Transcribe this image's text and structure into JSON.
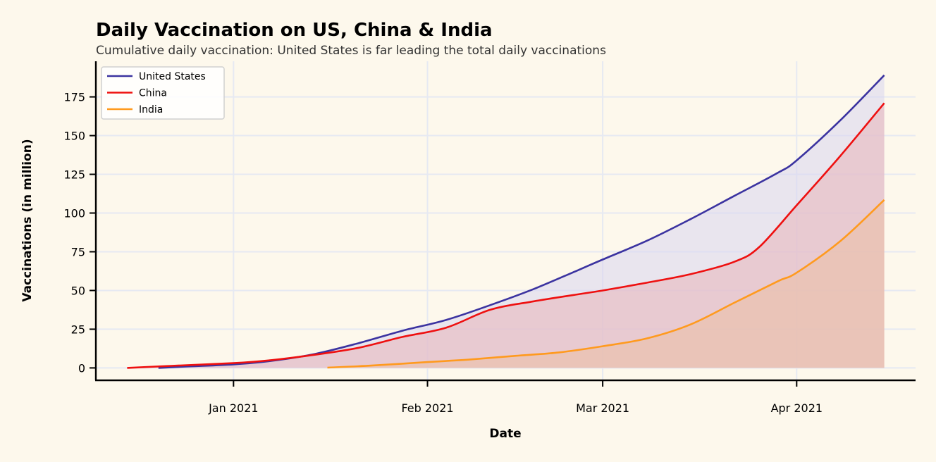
{
  "chart_data": {
    "type": "area",
    "title": "Daily Vaccination on US, China & India",
    "subtitle": "Cumulative daily vaccination: United States is far leading the total daily vaccinations",
    "xlabel": "Date",
    "ylabel": "Vaccinations (in million)",
    "xlim": [
      "2020-12-10",
      "2021-04-20"
    ],
    "ylim": [
      -8,
      198
    ],
    "x_ticks": [
      {
        "date": "2021-01-01",
        "label": "Jan 2021"
      },
      {
        "date": "2021-02-01",
        "label": "Feb 2021"
      },
      {
        "date": "2021-03-01",
        "label": "Mar 2021"
      },
      {
        "date": "2021-04-01",
        "label": "Apr 2021"
      }
    ],
    "y_ticks": [
      0,
      25,
      50,
      75,
      100,
      125,
      150,
      175
    ],
    "grid": true,
    "legend_position": "top-left",
    "series": [
      {
        "name": "United States",
        "color": "#3b33a0",
        "fill": "#d9d6f0",
        "points": [
          [
            "2020-12-20",
            0
          ],
          [
            "2020-12-25",
            1
          ],
          [
            "2021-01-01",
            2.3
          ],
          [
            "2021-01-07",
            4.5
          ],
          [
            "2021-01-14",
            9
          ],
          [
            "2021-01-21",
            16
          ],
          [
            "2021-01-28",
            24
          ],
          [
            "2021-02-04",
            31
          ],
          [
            "2021-02-11",
            40.5
          ],
          [
            "2021-02-18",
            51
          ],
          [
            "2021-02-25",
            63
          ],
          [
            "2021-03-01",
            70
          ],
          [
            "2021-03-08",
            82
          ],
          [
            "2021-03-15",
            96
          ],
          [
            "2021-03-22",
            111
          ],
          [
            "2021-03-29",
            126
          ],
          [
            "2021-04-01",
            134
          ],
          [
            "2021-04-08",
            160
          ],
          [
            "2021-04-15",
            189
          ]
        ]
      },
      {
        "name": "China",
        "color": "#ee1010",
        "fill": "#e8b4b9",
        "points": [
          [
            "2020-12-15",
            0
          ],
          [
            "2020-12-22",
            1.3
          ],
          [
            "2021-01-01",
            3.1
          ],
          [
            "2021-01-07",
            5
          ],
          [
            "2021-01-14",
            8.5
          ],
          [
            "2021-01-21",
            13
          ],
          [
            "2021-01-28",
            20
          ],
          [
            "2021-02-04",
            26
          ],
          [
            "2021-02-11",
            37.5
          ],
          [
            "2021-02-18",
            43
          ],
          [
            "2021-02-25",
            47.5
          ],
          [
            "2021-03-01",
            50
          ],
          [
            "2021-03-08",
            55
          ],
          [
            "2021-03-15",
            60.5
          ],
          [
            "2021-03-22",
            68.5
          ],
          [
            "2021-03-26",
            78
          ],
          [
            "2021-04-01",
            105
          ],
          [
            "2021-04-08",
            137
          ],
          [
            "2021-04-15",
            171
          ]
        ]
      },
      {
        "name": "India",
        "color": "#ff9a1e",
        "fill": "#ebc0a4",
        "points": [
          [
            "2021-01-16",
            0.2
          ],
          [
            "2021-01-23",
            1.5
          ],
          [
            "2021-02-01",
            3.8
          ],
          [
            "2021-02-08",
            5.5
          ],
          [
            "2021-02-15",
            7.8
          ],
          [
            "2021-02-22",
            10
          ],
          [
            "2021-03-01",
            14
          ],
          [
            "2021-03-08",
            19
          ],
          [
            "2021-03-15",
            28
          ],
          [
            "2021-03-22",
            42
          ],
          [
            "2021-03-29",
            56
          ],
          [
            "2021-04-01",
            61.5
          ],
          [
            "2021-04-08",
            82
          ],
          [
            "2021-04-15",
            108.5
          ]
        ]
      }
    ]
  }
}
